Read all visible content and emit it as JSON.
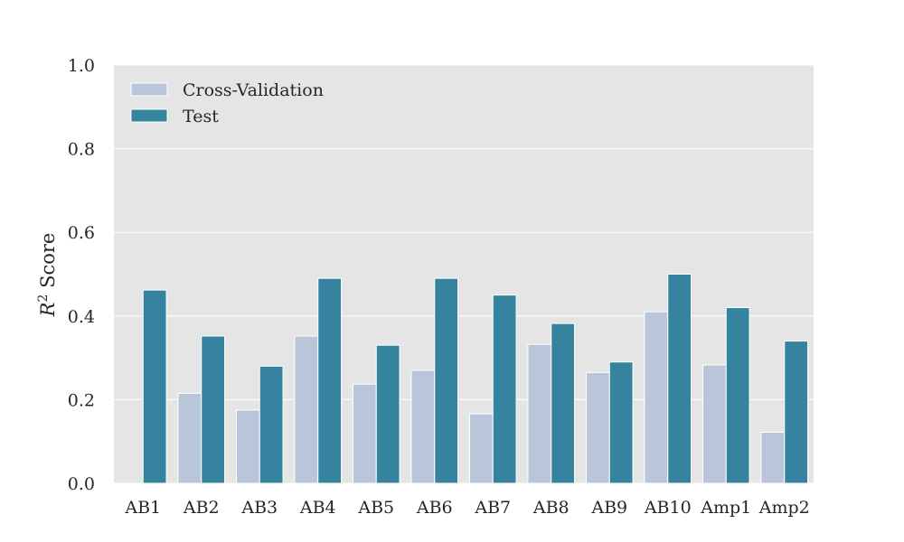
{
  "chart_data": {
    "type": "bar",
    "title": "",
    "xlabel": "",
    "ylabel_prefix": "R",
    "ylabel_superscript": "2",
    "ylabel_suffix": " Score",
    "ylim": [
      0.0,
      1.0
    ],
    "yticks": [
      "0.0",
      "0.2",
      "0.4",
      "0.6",
      "0.8",
      "1.0"
    ],
    "grid": true,
    "legend_position": "top-left",
    "categories": [
      "AB1",
      "AB2",
      "AB3",
      "AB4",
      "AB5",
      "AB6",
      "AB7",
      "AB8",
      "AB9",
      "AB10",
      "Amp1",
      "Amp2"
    ],
    "series": [
      {
        "name": "Cross-Validation",
        "color": "#b9c6da",
        "values": [
          0.0,
          0.215,
          0.175,
          0.352,
          0.237,
          0.27,
          0.166,
          0.332,
          0.265,
          0.41,
          0.283,
          0.122
        ]
      },
      {
        "name": "Test",
        "color": "#3683a0",
        "values": [
          0.462,
          0.352,
          0.28,
          0.49,
          0.33,
          0.49,
          0.45,
          0.382,
          0.29,
          0.5,
          0.42,
          0.34
        ]
      }
    ],
    "colors": {
      "plot_background": "#e5e5e5",
      "grid": "#ffffff",
      "text": "#262626"
    }
  }
}
